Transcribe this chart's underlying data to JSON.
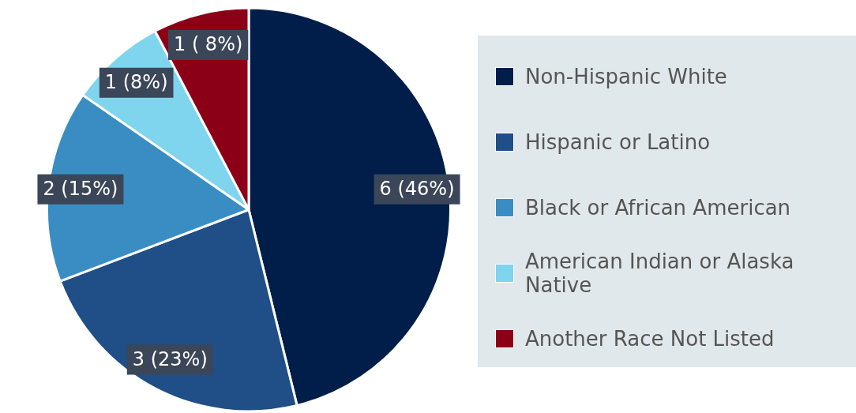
{
  "chart_data": {
    "type": "pie",
    "categories": [
      "Non-Hispanic White",
      "Hispanic or Latino",
      "Black or African American",
      "American Indian or Alaska Native",
      "Another Race Not Listed"
    ],
    "values": [
      6,
      3,
      2,
      1,
      1
    ],
    "colors": [
      "#001e49",
      "#1f4f86",
      "#398dc3",
      "#7fd4ee",
      "#8c0017"
    ],
    "value_labels": [
      "6 (46%)",
      "3 (23%)",
      "2 (15%)",
      "1 (8%)",
      "1 ( 8%)"
    ],
    "legend": "right"
  }
}
